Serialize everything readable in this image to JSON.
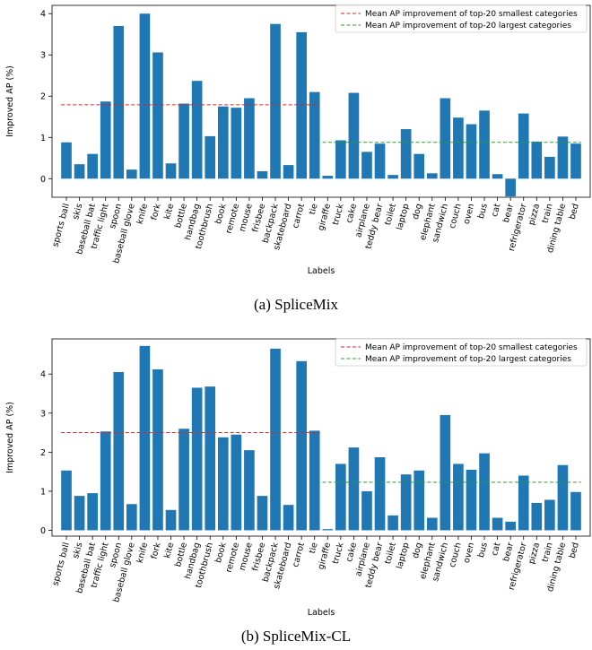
{
  "captions": [
    "(a)  SpliceMix",
    "(b)  SpliceMix-CL"
  ],
  "colors": {
    "bar": "#1f77b4",
    "small_line": "#d62728",
    "large_line": "#2ca02c"
  },
  "chart_data": [
    {
      "type": "bar",
      "caption": "(a)  SpliceMix",
      "xlabel": "Labels",
      "ylabel": "Improved AP (%)",
      "ylim": [
        -0.45,
        4.2
      ],
      "yticks": [
        0,
        1,
        2,
        3,
        4
      ],
      "categories": [
        "sports ball",
        "skis",
        "baseball bat",
        "traffic light",
        "spoon",
        "baseball glove",
        "knife",
        "fork",
        "kite",
        "bottle",
        "handbag",
        "toothbrush",
        "book",
        "remote",
        "mouse",
        "frisbee",
        "backpack",
        "skateboard",
        "carrot",
        "tie",
        "giraffe",
        "truck",
        "cake",
        "airplane",
        "teddy bear",
        "toilet",
        "laptop",
        "dog",
        "elephant",
        "sandwich",
        "couch",
        "oven",
        "bus",
        "cat",
        "bear",
        "refrigerator",
        "pizza",
        "train",
        "dining table",
        "bed"
      ],
      "values": [
        0.88,
        0.35,
        0.6,
        1.87,
        3.7,
        0.22,
        4.0,
        3.06,
        0.37,
        1.82,
        2.37,
        1.03,
        1.75,
        1.72,
        1.95,
        0.18,
        3.75,
        0.33,
        3.55,
        2.1,
        0.07,
        0.93,
        2.08,
        0.65,
        0.85,
        0.09,
        1.2,
        0.6,
        0.13,
        1.95,
        1.48,
        1.32,
        1.65,
        0.11,
        -0.43,
        1.58,
        0.9,
        0.53,
        1.02,
        0.85
      ],
      "mean_lines": [
        {
          "label": "Mean AP improvement of top-20 smallest categories",
          "value": 1.79,
          "from": 0,
          "to": 19,
          "style": "small"
        },
        {
          "label": "Mean AP improvement of top-20 largest categories",
          "value": 0.88,
          "from": 20,
          "to": 39,
          "style": "large"
        }
      ],
      "legend": "top-right"
    },
    {
      "type": "bar",
      "caption": "(b)  SpliceMix-CL",
      "xlabel": "Labels",
      "ylabel": "Improved AP (%)",
      "ylim": [
        -0.15,
        4.9
      ],
      "yticks": [
        0,
        1,
        2,
        3,
        4
      ],
      "categories": [
        "sports ball",
        "skis",
        "baseball bat",
        "traffic light",
        "spoon",
        "baseball glove",
        "knife",
        "fork",
        "kite",
        "bottle",
        "handbag",
        "toothbrush",
        "book",
        "remote",
        "mouse",
        "frisbee",
        "backpack",
        "skateboard",
        "carrot",
        "tie",
        "giraffe",
        "truck",
        "cake",
        "airplane",
        "teddy bear",
        "toilet",
        "laptop",
        "dog",
        "elephant",
        "sandwich",
        "couch",
        "oven",
        "bus",
        "cat",
        "bear",
        "refrigerator",
        "pizza",
        "train",
        "dining table",
        "bed"
      ],
      "values": [
        1.53,
        0.88,
        0.95,
        2.53,
        4.05,
        0.67,
        4.72,
        4.12,
        0.52,
        2.6,
        3.65,
        3.68,
        2.38,
        2.45,
        2.05,
        0.88,
        4.65,
        0.65,
        4.33,
        2.55,
        0.03,
        1.7,
        2.12,
        1.0,
        1.87,
        0.38,
        1.43,
        1.53,
        0.32,
        2.95,
        1.7,
        1.55,
        1.97,
        0.32,
        0.22,
        1.4,
        0.7,
        0.78,
        1.67,
        0.98
      ],
      "mean_lines": [
        {
          "label": "Mean AP improvement of top-20 smallest categories",
          "value": 2.5,
          "from": 0,
          "to": 19,
          "style": "small"
        },
        {
          "label": "Mean AP improvement of top-20 largest categories",
          "value": 1.23,
          "from": 20,
          "to": 39,
          "style": "large"
        }
      ],
      "legend": "top-right"
    }
  ]
}
